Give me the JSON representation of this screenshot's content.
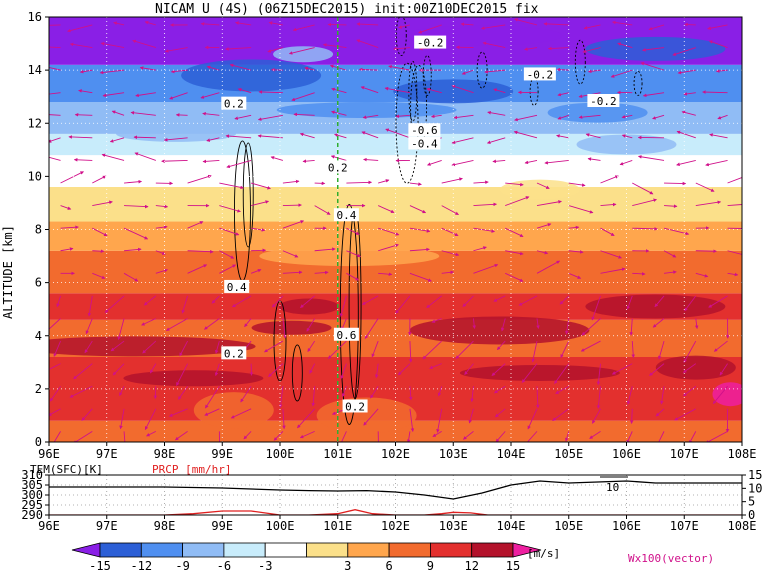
{
  "chart_data": [
    {
      "type": "heatmap",
      "title": "NICAM U (4S) (06Z15DEC2015) init:00Z10DEC2015 fix",
      "ylabel": "ALTITUDE [km]",
      "xlabel": "",
      "x_ticks": [
        "96E",
        "97E",
        "98E",
        "99E",
        "100E",
        "101E",
        "102E",
        "103E",
        "104E",
        "105E",
        "106E",
        "107E",
        "108E"
      ],
      "y_ticks": [
        "0",
        "2",
        "4",
        "6",
        "8",
        "10",
        "12",
        "14",
        "16"
      ],
      "xlim": [
        96,
        108
      ],
      "ylim": [
        0,
        16
      ],
      "grid": true,
      "marker_line_x": 101,
      "contour_labels": [
        "-0.2",
        "-0.2",
        "-0.2",
        "0.2",
        "-0.6",
        "-0.4",
        "0.2",
        "0.4",
        "0.4",
        "0.6",
        "0.2",
        "0.2"
      ],
      "vector_label": "Wx100(vector)"
    },
    {
      "type": "line",
      "series": [
        {
          "name": "TEM(SFC)[K]",
          "color": "#000000",
          "x": [
            96,
            97,
            98,
            99,
            100,
            100.5,
            101,
            101.5,
            102,
            102.5,
            103,
            103.5,
            104,
            104.5,
            105,
            105.5,
            106,
            106.5,
            107,
            107.5,
            108
          ],
          "values": [
            304,
            304,
            304,
            303.5,
            302.5,
            302.2,
            302,
            302.2,
            301.5,
            300,
            298,
            301,
            305,
            307,
            306,
            306.5,
            307,
            306,
            306,
            306,
            306
          ]
        },
        {
          "name": "PRCP [mm/hr]",
          "color": "#e02020",
          "x": [
            96,
            98,
            98.5,
            99,
            99.5,
            100,
            100.5,
            101,
            101.3,
            101.6,
            102,
            102.5,
            102.8,
            103,
            103.3,
            103.6,
            104,
            105,
            106,
            107,
            108
          ],
          "values": [
            0,
            0,
            0.5,
            1.5,
            1.5,
            0,
            0,
            0.5,
            2,
            0.5,
            0,
            0,
            0.5,
            1,
            0.8,
            0,
            0,
            0,
            0,
            0,
            0
          ]
        }
      ],
      "left_ticks": [
        "290",
        "295",
        "300",
        "305",
        "310"
      ],
      "right_ticks": [
        "0",
        "5",
        "10",
        "15"
      ],
      "x_ticks": [
        "96E",
        "97E",
        "98E",
        "99E",
        "100E",
        "101E",
        "102E",
        "103E",
        "104E",
        "105E",
        "106E",
        "107E",
        "108E"
      ],
      "annotation": "10"
    }
  ],
  "colorbar": {
    "ticks": [
      "-15",
      "-12",
      "-9",
      "-6",
      "-3",
      "3",
      "6",
      "9",
      "12",
      "15"
    ],
    "unit": "[m/s]",
    "colors": [
      "#8a1fe6",
      "#2c5fd6",
      "#4f8ff0",
      "#90bcf5",
      "#c8ecfb",
      "#ffffff",
      "#fbe08a",
      "#ffa64d",
      "#f26b2e",
      "#e3302e",
      "#b3122b",
      "#ee1fa0"
    ]
  }
}
